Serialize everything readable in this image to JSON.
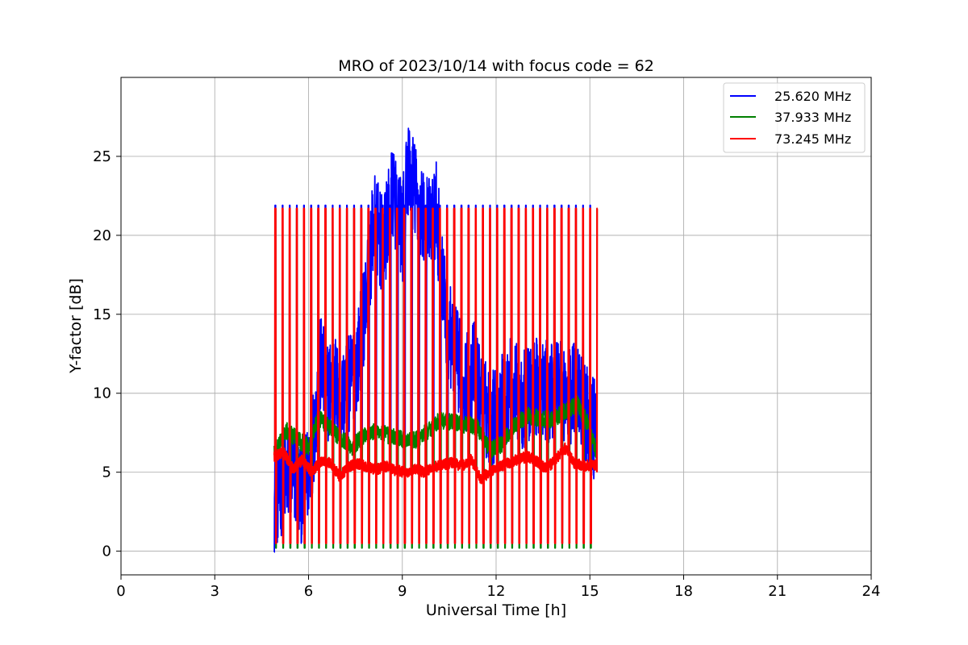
{
  "chart_data": {
    "type": "line",
    "title": "MRO of 2023/10/14 with focus code = 62",
    "xlabel": "Universal Time [h]",
    "ylabel": "Y-factor [dB]",
    "xlim": [
      0,
      24
    ],
    "ylim": [
      -1.5,
      30
    ],
    "xticks": [
      0,
      3,
      6,
      9,
      12,
      15,
      18,
      21,
      24
    ],
    "yticks": [
      0,
      5,
      10,
      15,
      20,
      25
    ],
    "grid": true,
    "legend_position": "top-right",
    "calibration_pulses": {
      "t_start": 4.95,
      "t_end": 15.25,
      "count": 46,
      "peak_db": 21.7,
      "low_db": 0.3
    },
    "series": [
      {
        "name": "25.620 MHz",
        "color": "#0000ff",
        "x": [
          4.9,
          5.2,
          5.5,
          5.8,
          6.0,
          6.2,
          6.4,
          6.6,
          6.8,
          7.0,
          7.3,
          7.6,
          7.9,
          8.1,
          8.4,
          8.7,
          9.0,
          9.2,
          9.5,
          9.8,
          10.1,
          10.4,
          10.7,
          11.0,
          11.3,
          11.6,
          11.9,
          12.2,
          12.5,
          12.8,
          13.1,
          13.4,
          13.7,
          14.0,
          14.3,
          14.6,
          14.9,
          15.2
        ],
        "y": [
          3.0,
          4.5,
          5.0,
          3.5,
          5.0,
          8.0,
          12.0,
          10.0,
          11.0,
          9.5,
          10.5,
          12.5,
          17.0,
          21.0,
          19.0,
          23.0,
          20.0,
          24.5,
          22.0,
          20.5,
          21.5,
          14.5,
          12.5,
          10.5,
          11.5,
          9.0,
          8.5,
          9.5,
          10.5,
          9.5,
          10.0,
          10.5,
          10.0,
          11.0,
          9.5,
          10.5,
          8.5,
          7.5
        ]
      },
      {
        "name": "37.933 MHz",
        "color": "#008000",
        "x": [
          4.9,
          5.3,
          5.7,
          6.0,
          6.3,
          6.6,
          7.0,
          7.4,
          7.8,
          8.2,
          8.6,
          9.0,
          9.4,
          9.8,
          10.2,
          10.6,
          11.0,
          11.4,
          11.8,
          12.2,
          12.6,
          13.0,
          13.4,
          13.8,
          14.2,
          14.6,
          15.0,
          15.25
        ],
        "y": [
          6.2,
          7.6,
          7.0,
          6.6,
          8.4,
          8.0,
          7.2,
          6.6,
          7.4,
          7.6,
          7.3,
          7.1,
          7.0,
          7.6,
          8.3,
          8.2,
          8.0,
          7.9,
          6.4,
          6.8,
          8.0,
          8.6,
          8.4,
          8.3,
          8.9,
          9.3,
          7.8,
          6.0
        ]
      },
      {
        "name": "73.245 MHz",
        "color": "#ff0000",
        "x": [
          4.9,
          5.2,
          5.5,
          5.8,
          6.1,
          6.4,
          6.7,
          7.0,
          7.3,
          7.6,
          7.9,
          8.2,
          8.5,
          8.8,
          9.1,
          9.4,
          9.7,
          10.0,
          10.3,
          10.6,
          10.9,
          11.2,
          11.5,
          11.8,
          12.1,
          12.4,
          12.7,
          13.0,
          13.3,
          13.6,
          13.9,
          14.2,
          14.5,
          14.8,
          15.1,
          15.25
        ],
        "y": [
          6.0,
          6.3,
          5.2,
          5.8,
          5.0,
          5.7,
          5.6,
          4.7,
          5.4,
          5.5,
          5.3,
          5.2,
          5.4,
          5.1,
          5.0,
          5.2,
          5.0,
          5.3,
          5.5,
          5.6,
          5.4,
          5.8,
          4.6,
          5.0,
          5.3,
          5.6,
          5.8,
          6.0,
          5.7,
          5.2,
          5.8,
          6.5,
          5.6,
          5.4,
          5.5,
          5.3
        ]
      }
    ]
  }
}
